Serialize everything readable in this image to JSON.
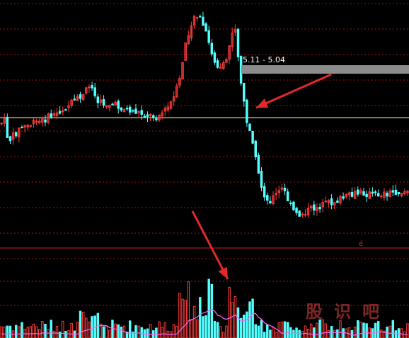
{
  "chart_data": {
    "type": "candlestick",
    "title": "",
    "xlabel": "",
    "ylabel": "",
    "grid": true,
    "colors": {
      "background": "#000000",
      "grid": "#a01414",
      "up": "#ff3c3c",
      "down": "#54ffff",
      "reference_line": "#ffff8c",
      "divider": "#c81e1e",
      "volume_ma": "#ff64ff",
      "range_box": "#8c8c8c",
      "arrow": "#e02a2a"
    },
    "range_label": "5.11 - 5.04",
    "price_markers": [],
    "volume_markers": [],
    "series_seed": 7,
    "sessions": 140
  },
  "watermark": {
    "chars": [
      "股",
      "识",
      "吧"
    ]
  },
  "marker_char": "é"
}
